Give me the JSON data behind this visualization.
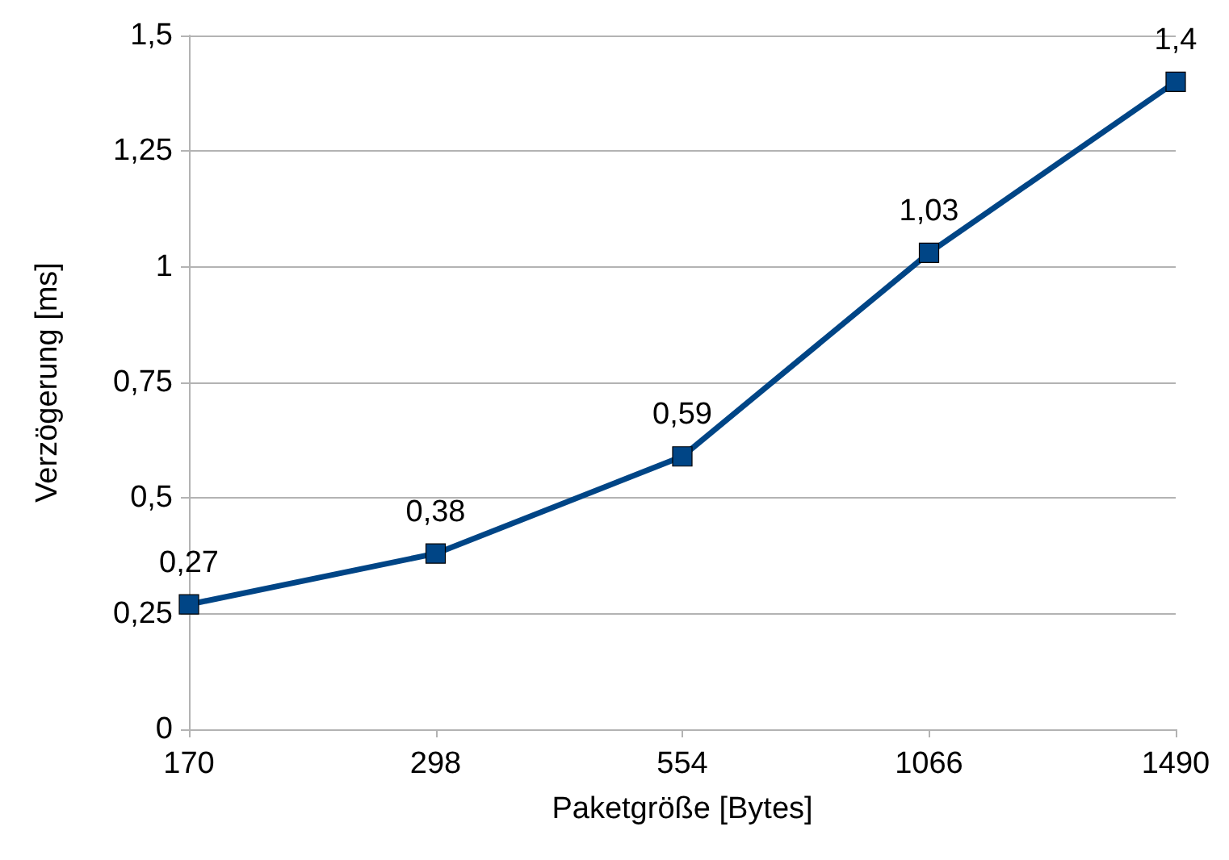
{
  "chart_data": {
    "type": "line",
    "xlabel": "Paketgröße [Bytes]",
    "ylabel": "Verzögerung [ms]",
    "categories": [
      "170",
      "298",
      "554",
      "1066",
      "1490"
    ],
    "series": [
      {
        "color": "#004586",
        "values": [
          0.27,
          0.38,
          0.59,
          1.03,
          1.4
        ],
        "value_labels": [
          "0,27",
          "0,38",
          "0,59",
          "1,03",
          "1,4"
        ]
      }
    ],
    "ylim": [
      0,
      1.5
    ],
    "yticks": [
      0,
      {
        "value": 0.25,
        "label": "0,25"
      },
      {
        "value": 0.5,
        "label": "0,5"
      },
      {
        "value": 0.75,
        "label": "0,75"
      },
      1,
      {
        "value": 1.25,
        "label": "1,25"
      },
      {
        "value": 1.5,
        "label": "1,5"
      }
    ],
    "grid": "y",
    "marker": "square",
    "line_style": "solid"
  }
}
